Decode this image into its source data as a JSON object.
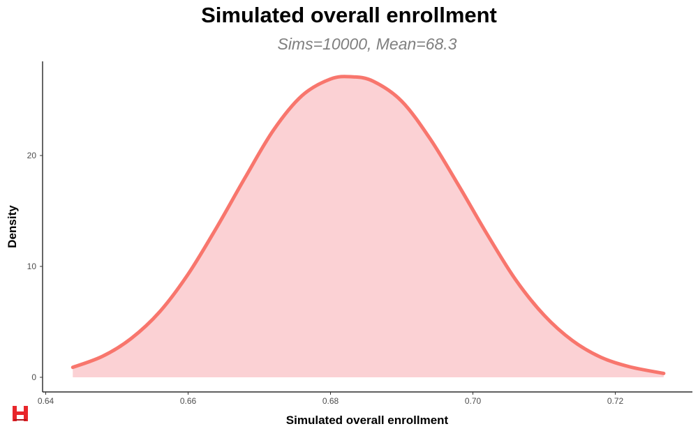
{
  "chart_data": {
    "type": "area",
    "title": "Simulated overall enrollment",
    "subtitle": "Sims=10000, Mean=68.3",
    "xlabel": "Simulated overall enrollment",
    "ylabel": "Density",
    "xlim": [
      0.64,
      0.73
    ],
    "ylim": [
      0,
      27.5
    ],
    "x_ticks": [
      0.64,
      0.66,
      0.68,
      0.7,
      0.72
    ],
    "x_tick_labels": [
      "0.64",
      "0.66",
      "0.68",
      "0.70",
      "0.72"
    ],
    "y_ticks": [
      0,
      10,
      20
    ],
    "y_tick_labels": [
      "0",
      "10",
      "20"
    ],
    "grid": false,
    "legend": "none",
    "series": [
      {
        "x": [
          0.6438,
          0.648,
          0.652,
          0.656,
          0.66,
          0.664,
          0.668,
          0.672,
          0.676,
          0.68,
          0.683,
          0.686,
          0.69,
          0.694,
          0.698,
          0.702,
          0.706,
          0.71,
          0.714,
          0.718,
          0.722,
          0.7268
        ],
        "y": [
          0.9,
          1.9,
          3.5,
          5.9,
          9.3,
          13.5,
          18.0,
          22.3,
          25.4,
          26.9,
          27.1,
          26.7,
          24.9,
          21.5,
          17.3,
          12.9,
          8.8,
          5.6,
          3.3,
          1.8,
          0.95,
          0.35
        ]
      }
    ],
    "colors": {
      "line": "#f8766d",
      "fill": "#fbd1d4",
      "axis": "#000000"
    }
  },
  "logo": {
    "icon": "h-logo-icon",
    "color": "#e8262b"
  }
}
